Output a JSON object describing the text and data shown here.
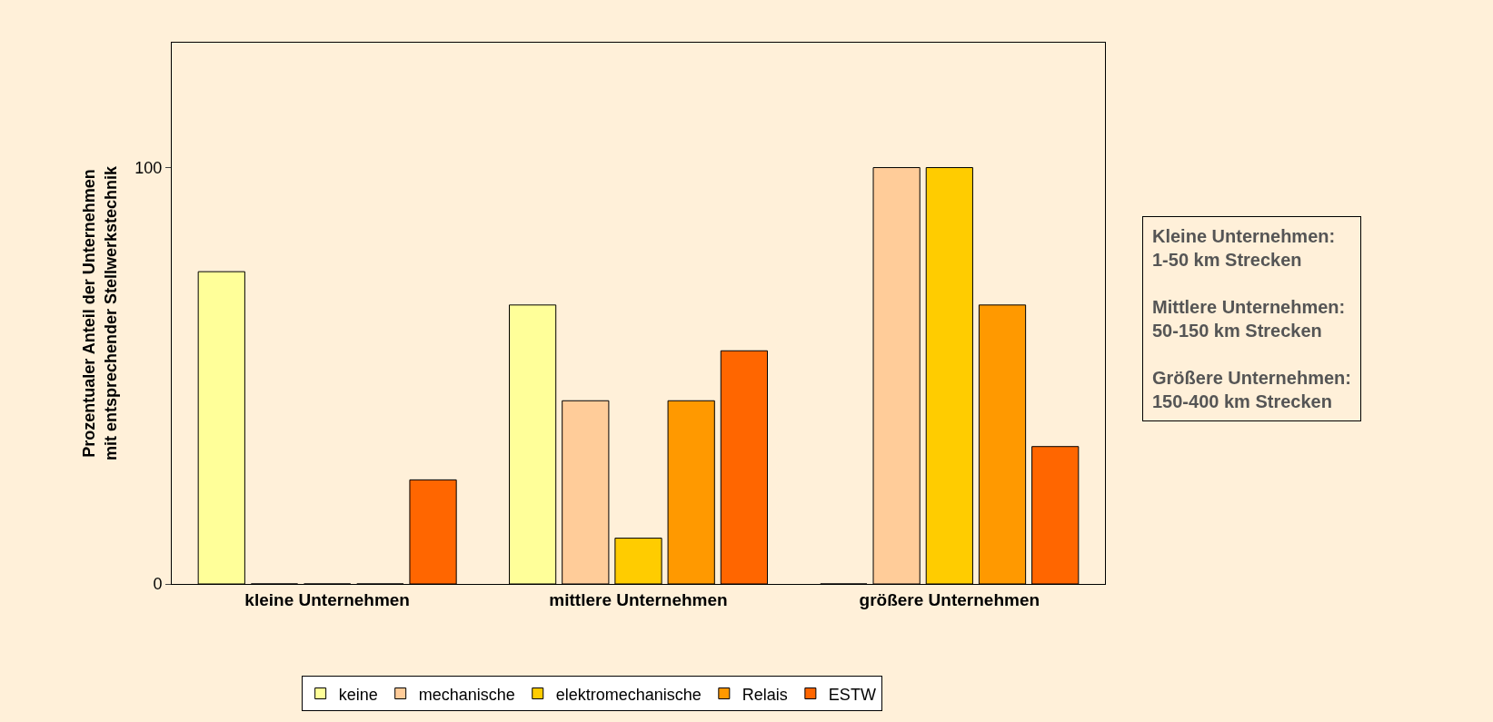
{
  "chart_data": {
    "type": "bar",
    "ylabel": "Prozentualer Anteil der Unternehmen\nmit entsprechender Stellwerkstechnik",
    "categories": [
      "kleine Unternehmen",
      "mittlere Unternehmen",
      "größere Unternehmen"
    ],
    "series": [
      {
        "name": "keine",
        "color": "#ffff99",
        "values": [
          75,
          67,
          0
        ]
      },
      {
        "name": "mechanische",
        "color": "#ffcc99",
        "values": [
          0,
          44,
          100
        ]
      },
      {
        "name": "elektromechanische",
        "color": "#ffcc00",
        "values": [
          0,
          11,
          100
        ]
      },
      {
        "name": "Relais",
        "color": "#ff9900",
        "values": [
          0,
          44,
          67
        ]
      },
      {
        "name": "ESTW",
        "color": "#ff6600",
        "values": [
          25,
          56,
          33
        ]
      }
    ],
    "ylim": [
      0,
      130
    ],
    "yticks": [
      0,
      100
    ],
    "grid": false,
    "legend": "bottom",
    "annotations": [
      "Kleine Unternehmen:\n1-50 km Strecken\n\nMittlere Unternehmen:\n50-150 km Strecken\n\nGrößere Unternehmen:\n150-400 km Strecken"
    ]
  }
}
